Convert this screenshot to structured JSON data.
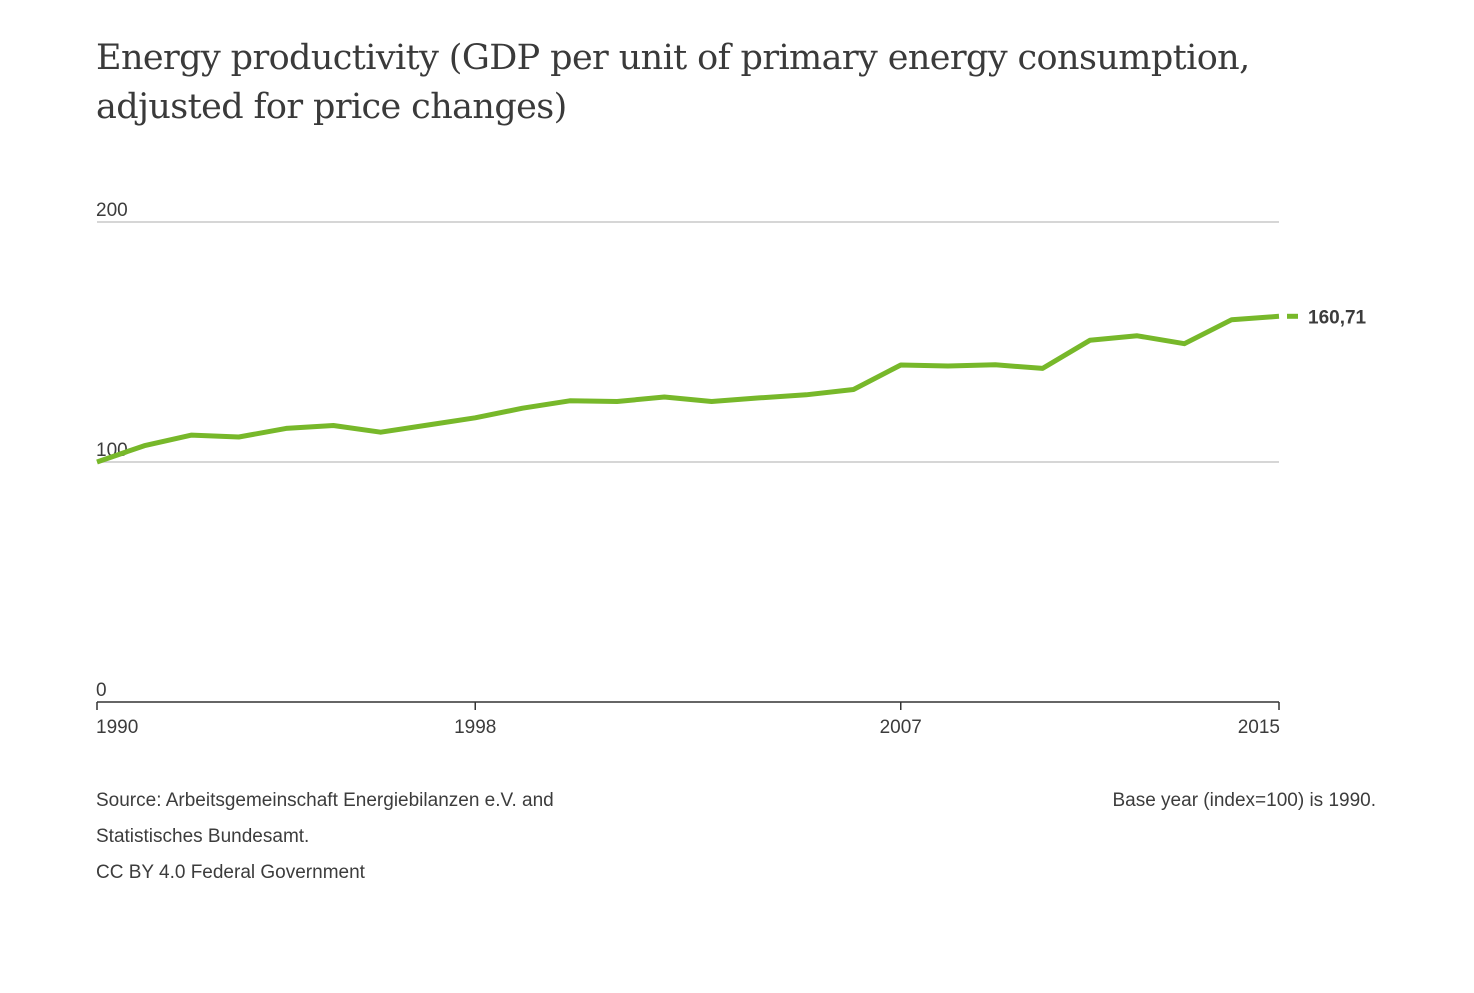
{
  "title": "Energy productivity (GDP per unit of primary energy consumption, adjusted for price changes)",
  "source_line1": "Source: Arbeitsgemeinschaft Energiebilanzen e.V. and",
  "source_line2": "Statistisches Bundesamt.",
  "license": "CC BY 4.0 Federal Government",
  "base_note": "Base year (index=100) is 1990.",
  "colors": {
    "line": "#77b82a",
    "grid": "#c8c8c8",
    "axis": "#333333"
  },
  "chart_data": {
    "type": "line",
    "title": "Energy productivity (GDP per unit of primary energy consumption, adjusted for price changes)",
    "xlabel": "",
    "ylabel": "",
    "x": [
      1990,
      1991,
      1992,
      1993,
      1994,
      1995,
      1996,
      1997,
      1998,
      1999,
      2000,
      2001,
      2002,
      2003,
      2004,
      2005,
      2006,
      2007,
      2008,
      2009,
      2010,
      2011,
      2012,
      2013,
      2014,
      2015
    ],
    "series": [
      {
        "values": [
          100.0,
          106.8,
          111.2,
          110.4,
          114.0,
          115.2,
          112.4,
          115.4,
          118.4,
          122.4,
          125.5,
          125.2,
          127.1,
          125.2,
          126.7,
          128.0,
          130.2,
          140.4,
          140.0,
          140.5,
          139.0,
          150.7,
          152.6,
          149.3,
          159.3,
          160.71
        ]
      }
    ],
    "xticks": [
      "1990",
      "1998",
      "2007",
      "2015"
    ],
    "xtick_values": [
      1990,
      1998,
      2007,
      2015
    ],
    "yticks": [
      "0",
      "100",
      "200"
    ],
    "ytick_values": [
      0,
      100,
      200
    ],
    "ylim": [
      0,
      200
    ],
    "xlim": [
      1990,
      2015
    ],
    "end_label": "160,71",
    "grid": true,
    "legend": "none"
  }
}
